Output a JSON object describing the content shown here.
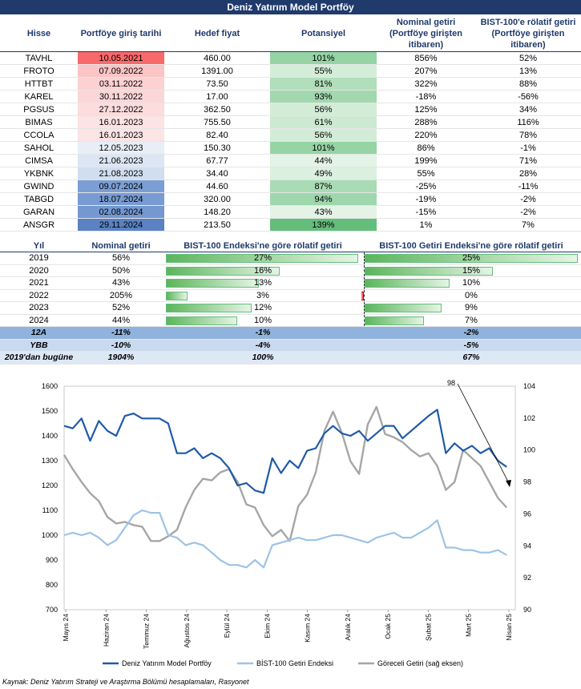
{
  "title": "Deniz Yatırım Model Portföy",
  "holdings": {
    "headers": {
      "stock": "Hisse",
      "entry_date": "Portföye giriş tarihi",
      "target": "Hedef fiyat",
      "potential": "Potansiyel",
      "nominal": "Nominal getiri (Portföye girişten itibaren)",
      "relative": "BIST-100'e rölatif getiri (Portföye girişten itibaren)"
    },
    "rows": [
      {
        "stock": "TAVHL",
        "date": "10.05.2021",
        "target": "460.00",
        "potential": "101%",
        "pot_value": 101,
        "nominal": "856%",
        "relative": "52%",
        "date_color": "#f8696b"
      },
      {
        "stock": "FROTO",
        "date": "07.09.2022",
        "target": "1391.00",
        "potential": "55%",
        "pot_value": 55,
        "nominal": "207%",
        "relative": "13%",
        "date_color": "#fbc4c5"
      },
      {
        "stock": "HTTBT",
        "date": "03.11.2022",
        "target": "73.50",
        "potential": "81%",
        "pot_value": 81,
        "nominal": "322%",
        "relative": "88%",
        "date_color": "#fcd1d2"
      },
      {
        "stock": "KAREL",
        "date": "30.11.2022",
        "target": "17.00",
        "potential": "93%",
        "pot_value": 93,
        "nominal": "-18%",
        "relative": "-56%",
        "date_color": "#fcd6d7"
      },
      {
        "stock": "PGSUS",
        "date": "27.12.2022",
        "target": "362.50",
        "potential": "56%",
        "pot_value": 56,
        "nominal": "125%",
        "relative": "34%",
        "date_color": "#fcdcdd"
      },
      {
        "stock": "BIMAS",
        "date": "16.01.2023",
        "target": "755.50",
        "potential": "61%",
        "pot_value": 61,
        "nominal": "288%",
        "relative": "116%",
        "date_color": "#fce3e4"
      },
      {
        "stock": "CCOLA",
        "date": "16.01.2023",
        "target": "82.40",
        "potential": "56%",
        "pot_value": 56,
        "nominal": "220%",
        "relative": "78%",
        "date_color": "#fce3e4"
      },
      {
        "stock": "SAHOL",
        "date": "12.05.2023",
        "target": "150.30",
        "potential": "101%",
        "pot_value": 101,
        "nominal": "86%",
        "relative": "-1%",
        "date_color": "#e8eef8"
      },
      {
        "stock": "CIMSA",
        "date": "21.06.2023",
        "target": "67.77",
        "potential": "44%",
        "pot_value": 44,
        "nominal": "199%",
        "relative": "71%",
        "date_color": "#dce6f4"
      },
      {
        "stock": "YKBNK",
        "date": "21.08.2023",
        "target": "34.40",
        "potential": "49%",
        "pot_value": 49,
        "nominal": "55%",
        "relative": "28%",
        "date_color": "#d1def0"
      },
      {
        "stock": "GWIND",
        "date": "09.07.2024",
        "target": "44.60",
        "potential": "87%",
        "pot_value": 87,
        "nominal": "-25%",
        "relative": "-11%",
        "date_color": "#7b9fd4"
      },
      {
        "stock": "TABGD",
        "date": "18.07.2024",
        "target": "320.00",
        "potential": "94%",
        "pot_value": 94,
        "nominal": "-19%",
        "relative": "-2%",
        "date_color": "#789cd2"
      },
      {
        "stock": "GARAN",
        "date": "02.08.2024",
        "target": "148.20",
        "potential": "43%",
        "pot_value": 43,
        "nominal": "-15%",
        "relative": "-2%",
        "date_color": "#7498d0"
      },
      {
        "stock": "ANSGR",
        "date": "29.11.2024",
        "target": "213.50",
        "potential": "139%",
        "pot_value": 139,
        "nominal": "1%",
        "relative": "7%",
        "date_color": "#5a82c4"
      }
    ]
  },
  "annual": {
    "headers": {
      "year": "Yıl",
      "nominal": "Nominal getiri",
      "rel_index": "BIST-100 Endeksi'ne göre rölatif getiri",
      "rel_return": "BIST-100 Getiri Endeksi'ne göre rölatif getiri"
    },
    "rows": [
      {
        "year": "2019",
        "nominal": "56%",
        "rel_index": "27%",
        "rel_index_v": 27,
        "rel_return": "25%",
        "rel_return_v": 25
      },
      {
        "year": "2020",
        "nominal": "50%",
        "rel_index": "16%",
        "rel_index_v": 16,
        "rel_return": "15%",
        "rel_return_v": 15
      },
      {
        "year": "2021",
        "nominal": "43%",
        "rel_index": "13%",
        "rel_index_v": 13,
        "rel_return": "10%",
        "rel_return_v": 10
      },
      {
        "year": "2022",
        "nominal": "205%",
        "rel_index": "3%",
        "rel_index_v": 3,
        "rel_return": "0%",
        "rel_return_v": -0.4
      },
      {
        "year": "2023",
        "nominal": "52%",
        "rel_index": "12%",
        "rel_index_v": 12,
        "rel_return": "9%",
        "rel_return_v": 9
      },
      {
        "year": "2024",
        "nominal": "44%",
        "rel_index": "10%",
        "rel_index_v": 10,
        "rel_return": "7%",
        "rel_return_v": 7
      }
    ],
    "summary": [
      {
        "label": "12A",
        "nominal": "-11%",
        "rel_index": "-1%",
        "rel_return": "-2%"
      },
      {
        "label": "YBB",
        "nominal": "-10%",
        "rel_index": "-4%",
        "rel_return": "-5%"
      },
      {
        "label": "2019'dan bugüne",
        "nominal": "1904%",
        "rel_index": "100%",
        "rel_return": "67%"
      }
    ]
  },
  "colors": {
    "portfolio": "#1f5ba8",
    "bist_return": "#9cc3e6",
    "relative": "#a6a6a6",
    "header_blue": "#1f3a6b"
  },
  "chart_data": {
    "type": "line",
    "x_tick_labels": [
      "Mayıs 24",
      "Haziran 24",
      "Temmuz 24",
      "Ağustos 24",
      "Eylül 24",
      "Ekim 24",
      "Kasım 24",
      "Aralık 24",
      "Ocak 25",
      "Şubat 25",
      "Mart 25",
      "Nisan 25"
    ],
    "x_range": [
      0,
      52
    ],
    "y_left": {
      "min": 700,
      "max": 1600,
      "step": 100,
      "ticks": [
        "700",
        "800",
        "900",
        "1000",
        "1100",
        "1200",
        "1300",
        "1400",
        "1500",
        "1600"
      ]
    },
    "y_right": {
      "min": 90,
      "max": 104,
      "step": 2,
      "ticks": [
        "90",
        "92",
        "94",
        "96",
        "98",
        "100",
        "102",
        "104"
      ]
    },
    "annotation": "98",
    "series": [
      {
        "name": "Deniz Yatırım Model Portföy",
        "axis": "left",
        "x": [
          0,
          1,
          2,
          3,
          4,
          5,
          6,
          7,
          8,
          9,
          10,
          11,
          12,
          13,
          14,
          15,
          16,
          17,
          18,
          19,
          20,
          21,
          22,
          23,
          24,
          25,
          26,
          27,
          28,
          29,
          30,
          31,
          32,
          33,
          34,
          35,
          36,
          37,
          38,
          39,
          40,
          41,
          42,
          43,
          44,
          45,
          46,
          47,
          48,
          49,
          50,
          51
        ],
        "y": [
          1440,
          1430,
          1470,
          1380,
          1460,
          1420,
          1400,
          1480,
          1490,
          1470,
          1470,
          1470,
          1450,
          1330,
          1330,
          1350,
          1310,
          1330,
          1310,
          1270,
          1200,
          1210,
          1180,
          1170,
          1310,
          1250,
          1300,
          1270,
          1340,
          1350,
          1410,
          1440,
          1410,
          1400,
          1420,
          1380,
          1410,
          1440,
          1440,
          1390,
          1420,
          1450,
          1480,
          1505,
          1330,
          1370,
          1340,
          1360,
          1330,
          1350,
          1300,
          1275
        ]
      },
      {
        "name": "BİST-100 Getiri Endeksi",
        "axis": "left",
        "x": [
          0,
          1,
          2,
          3,
          4,
          5,
          6,
          7,
          8,
          9,
          10,
          11,
          12,
          13,
          14,
          15,
          16,
          17,
          18,
          19,
          20,
          21,
          22,
          23,
          24,
          25,
          26,
          27,
          28,
          29,
          30,
          31,
          32,
          33,
          34,
          35,
          36,
          37,
          38,
          39,
          40,
          41,
          42,
          43,
          44,
          45,
          46,
          47,
          48,
          49,
          50,
          51
        ],
        "y": [
          1000,
          1010,
          1000,
          1010,
          990,
          960,
          980,
          1030,
          1080,
          1100,
          1090,
          1090,
          1000,
          990,
          960,
          970,
          960,
          930,
          900,
          880,
          880,
          870,
          900,
          870,
          960,
          970,
          980,
          990,
          980,
          980,
          990,
          1000,
          1000,
          990,
          980,
          970,
          990,
          1000,
          1010,
          990,
          990,
          1010,
          1030,
          1060,
          950,
          950,
          940,
          940,
          930,
          930,
          940,
          920
        ]
      },
      {
        "name": "Göreceli Getiri (sağ eksen)",
        "axis": "right",
        "x": [
          0,
          1,
          2,
          3,
          4,
          5,
          6,
          7,
          8,
          9,
          10,
          11,
          12,
          13,
          14,
          15,
          16,
          17,
          18,
          19,
          20,
          21,
          22,
          23,
          24,
          25,
          26,
          27,
          28,
          29,
          30,
          31,
          32,
          33,
          34,
          35,
          36,
          37,
          38,
          39,
          40,
          41,
          42,
          43,
          44,
          45,
          46,
          47,
          48,
          49,
          50,
          51
        ],
        "y": [
          99.7,
          98.8,
          98.0,
          97.3,
          96.8,
          95.8,
          95.4,
          95.5,
          95.3,
          95.2,
          94.3,
          94.3,
          94.6,
          95.0,
          96.4,
          97.5,
          98.2,
          98.1,
          98.6,
          98.8,
          98.0,
          96.6,
          96.4,
          95.3,
          94.6,
          95.0,
          94.3,
          96.5,
          97.2,
          98.6,
          101.2,
          102.4,
          101.1,
          99.3,
          98.5,
          101.6,
          102.7,
          101.0,
          100.8,
          100.5,
          100.0,
          99.6,
          99.8,
          99.0,
          97.5,
          98.0,
          100.0,
          99.5,
          99.0,
          98.0,
          97.0,
          96.4
        ]
      }
    ]
  },
  "source": "Kaynak: Deniz Yatırım Strateji ve Araştırma Bölümü hesaplamaları, Rasyonet"
}
